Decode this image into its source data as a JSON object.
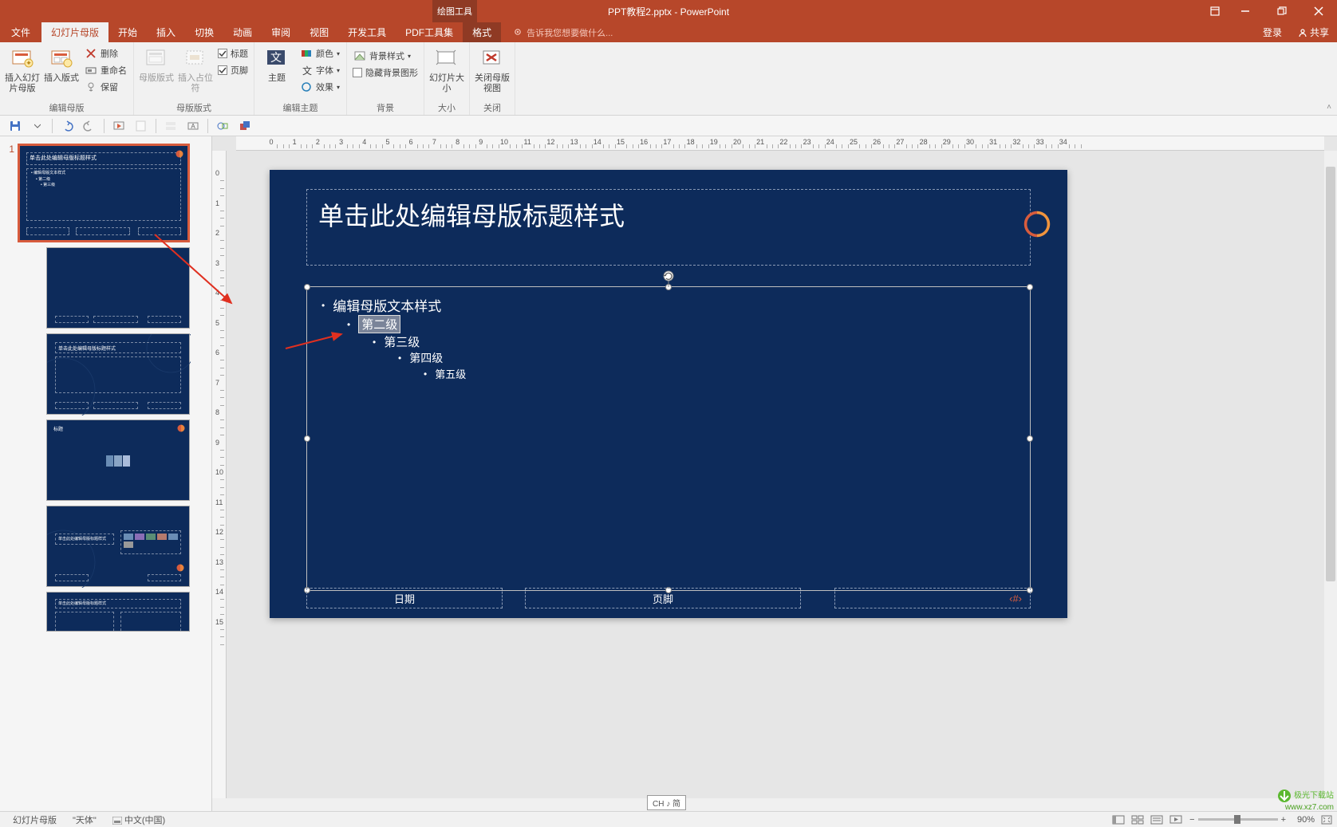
{
  "app": {
    "contextual_tab": "绘图工具",
    "title": "PPT教程2.pptx - PowerPoint"
  },
  "window_buttons": {
    "ribbon_toggle": "⬚",
    "minimize": "—",
    "restore": "❐",
    "close": "✕"
  },
  "tabs": {
    "file": "文件",
    "master": "幻灯片母版",
    "home": "开始",
    "insert": "插入",
    "transition": "切换",
    "animation": "动画",
    "review": "审阅",
    "view": "视图",
    "dev": "开发工具",
    "pdf": "PDF工具集",
    "format": "格式",
    "tellme": "告诉我您想要做什么...",
    "signin": "登录",
    "share": "共享"
  },
  "ribbon": {
    "g1": {
      "label": "编辑母版",
      "insert_master": "插入幻灯片母版",
      "insert_layout": "插入版式",
      "delete": "删除",
      "rename": "重命名",
      "preserve": "保留"
    },
    "g2": {
      "label": "母版版式",
      "master_layout": "母版版式",
      "insert_placeholder": "插入占位符",
      "chk_title": "标题",
      "chk_footer": "页脚"
    },
    "g3": {
      "label": "编辑主题",
      "themes": "主题",
      "colors": "颜色",
      "fonts": "字体",
      "effects": "效果"
    },
    "g4": {
      "label": "背景",
      "bg_style": "背景样式",
      "hide_bg": "隐藏背景图形"
    },
    "g5": {
      "label": "大小",
      "slide_size": "幻灯片大小"
    },
    "g6": {
      "label": "关闭",
      "close_master": "关闭母版视图"
    }
  },
  "slide": {
    "title": "单击此处编辑母版标题样式",
    "body1": "编辑母版文本样式",
    "body2": "第二级",
    "body3": "第三级",
    "body4": "第四级",
    "body5": "第五级",
    "date": "日期",
    "footer": "页脚",
    "pagenum": "‹#›"
  },
  "thumb_master_title": "单击此处编辑母版标题样式",
  "thumb_layout3_title": "单击此处编辑母版标题样式",
  "thumb_layout5_title": "单击此处编辑母版标题样式",
  "thumb_layout6_title": "单击此处编辑母版标题样式",
  "status": {
    "view": "幻灯片母版",
    "theme": "\"天体\"",
    "lang": "中文(中国)",
    "ime": "CH ♪ 简",
    "zoom": "90%"
  },
  "watermark": {
    "l1": "极光下载站",
    "l2": "www.xz7.com"
  },
  "colors": {
    "accent": "#b7472a",
    "slide_bg": "#0d2b5b",
    "slide_border_sel": "#d85c3d"
  },
  "ruler_h": [
    0,
    1,
    2,
    3,
    4,
    5,
    6,
    7,
    8,
    9,
    10,
    11,
    12,
    13,
    14,
    15,
    16,
    17,
    18,
    19,
    20,
    21,
    22,
    23,
    24,
    25,
    26,
    27,
    28,
    29,
    30,
    31,
    32,
    33,
    34
  ],
  "ruler_v": [
    0,
    1,
    2,
    3,
    4,
    5,
    6,
    7,
    8,
    9,
    10,
    11,
    12,
    13,
    14,
    15
  ]
}
